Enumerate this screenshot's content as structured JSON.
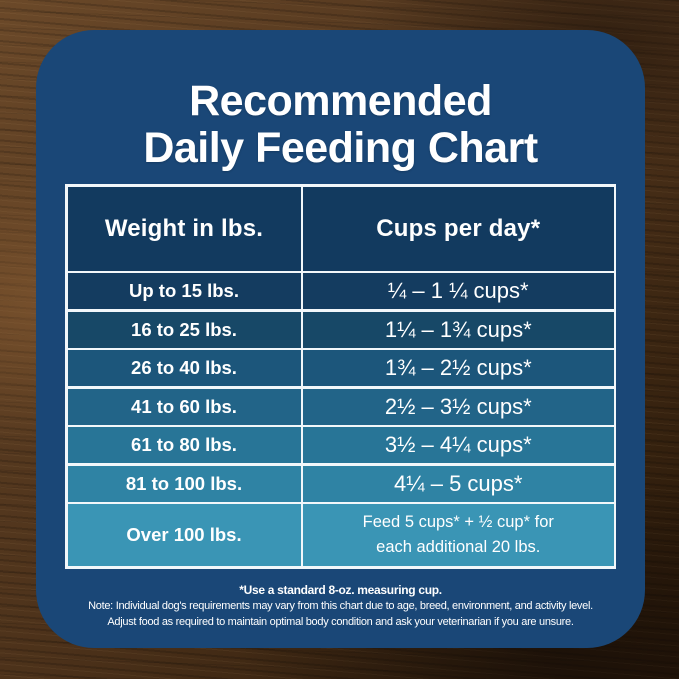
{
  "card": {
    "title_line1": "Recommended",
    "title_line2": "Daily Feeding Chart"
  },
  "table": {
    "headers": [
      "Weight in lbs.",
      "Cups per day*"
    ],
    "rows": [
      {
        "weight": "Up to 15 lbs.",
        "cups": "¼ – 1 ¼ cups*",
        "bg": "#143c60"
      },
      {
        "weight": "16 to 25 lbs.",
        "cups": "1¼ – 1¾ cups*",
        "bg": "#174867"
      },
      {
        "weight": "26 to 40 lbs.",
        "cups": "1¾ – 2½ cups*",
        "bg": "#1c567b"
      },
      {
        "weight": "41 to 60 lbs.",
        "cups": "2½ – 3½ cups*",
        "bg": "#226488"
      },
      {
        "weight": "61 to 80 lbs.",
        "cups": "3½ – 4¼ cups*",
        "bg": "#287597"
      },
      {
        "weight": "81 to 100 lbs.",
        "cups": "4¼ – 5 cups*",
        "bg": "#2f83a4"
      },
      {
        "weight": "Over 100 lbs.",
        "cups_line1": "Feed 5 cups* + ½ cup* for",
        "cups_line2": "each additional 20 lbs.",
        "bg": "#3a95b5"
      }
    ]
  },
  "footnotes": {
    "cup_note": "*Use a standard 8-oz. measuring cup.",
    "variation_note": "Note: Individual dog's requirements may vary from this chart due to age, breed, environment, and activity level.",
    "adjust_note": "Adjust food as required to maintain optimal body condition and ask your veterinarian if you are unsure."
  },
  "colors": {
    "card_bg": "#1a4777",
    "header_bg": "#123a5f",
    "table_border": "#f2f7fa",
    "title_text": "#ffffff",
    "wood_light": "#6b4929",
    "wood_dark": "#261607"
  },
  "chart_data": {
    "type": "table",
    "title": "Recommended Daily Feeding Chart",
    "columns": [
      "Weight in lbs.",
      "Cups per day*"
    ],
    "rows": [
      [
        "Up to 15 lbs.",
        "¼ – 1 ¼ cups*"
      ],
      [
        "16 to 25 lbs.",
        "1¼ – 1¾ cups*"
      ],
      [
        "26 to 40 lbs.",
        "1¾ – 2½ cups*"
      ],
      [
        "41 to 60 lbs.",
        "2½ – 3½ cups*"
      ],
      [
        "61 to 80 lbs.",
        "3½ – 4¼ cups*"
      ],
      [
        "81 to 100 lbs.",
        "4¼ – 5 cups*"
      ],
      [
        "Over 100 lbs.",
        "Feed 5 cups* + ½ cup* for each additional 20 lbs."
      ]
    ],
    "numeric_rows": [
      {
        "weight_lbs_min": 0,
        "weight_lbs_max": 15,
        "cups_min": 0.25,
        "cups_max": 1.25
      },
      {
        "weight_lbs_min": 16,
        "weight_lbs_max": 25,
        "cups_min": 1.25,
        "cups_max": 1.75
      },
      {
        "weight_lbs_min": 26,
        "weight_lbs_max": 40,
        "cups_min": 1.75,
        "cups_max": 2.5
      },
      {
        "weight_lbs_min": 41,
        "weight_lbs_max": 60,
        "cups_min": 2.5,
        "cups_max": 3.5
      },
      {
        "weight_lbs_min": 61,
        "weight_lbs_max": 80,
        "cups_min": 3.5,
        "cups_max": 4.25
      },
      {
        "weight_lbs_min": 81,
        "weight_lbs_max": 100,
        "cups_min": 4.25,
        "cups_max": 5
      },
      {
        "weight_lbs_min": 100,
        "weight_lbs_max": null,
        "rule": "5 cups plus 0.5 cup for each additional 20 lbs"
      }
    ],
    "footnote": "*Use a standard 8-oz. measuring cup."
  }
}
